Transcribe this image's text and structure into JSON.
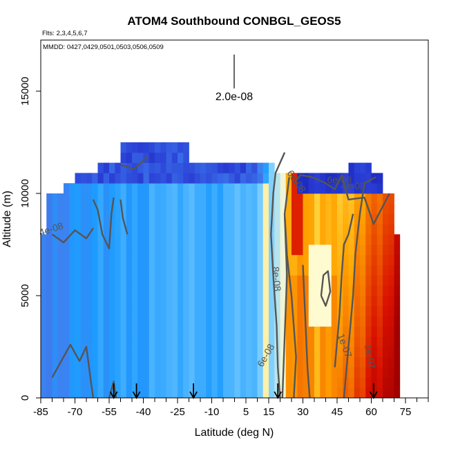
{
  "chart_data": {
    "type": "heatmap",
    "title": "ATOM4 Southbound CONBGL_GEOS5",
    "flights_note": "Flts: 2,3,4,5,6,7",
    "dates_note": "MMDD: 0427,0429,0501,0503,0506,0509",
    "xlabel": "Latitude (deg N)",
    "ylabel": "Altitude (m)",
    "xlim": [
      -85,
      85
    ],
    "ylim": [
      0,
      17500
    ],
    "x_tick_labels": [
      "-85",
      "-70",
      "-55",
      "-40",
      "-25",
      "-10",
      "5",
      "15",
      "30",
      "45",
      "60",
      "75"
    ],
    "x_tick_values": [
      -85,
      -70,
      -55,
      -40,
      -25,
      -10,
      5,
      15,
      30,
      45,
      60,
      75
    ],
    "y_tick_labels": [
      "0",
      "5000",
      "10000",
      "15000"
    ],
    "y_tick_values": [
      0,
      5000,
      10000,
      15000
    ],
    "scale_bar_label": "2.0e-08",
    "arrow_latitudes": [
      -53,
      -43,
      -18,
      19,
      61
    ],
    "contour_labels": [
      "4e-08",
      "6e-08",
      "8e-08",
      "6e-08",
      "1e-07",
      "1e-07",
      "6e-08",
      "4e-08"
    ],
    "color_scale": [
      "#0a0a9e",
      "#2a3fd6",
      "#3f7fef",
      "#1e9bff",
      "#7fd0ff",
      "#fffbd0",
      "#ffd23a",
      "#ffa300",
      "#f06000",
      "#d81000",
      "#a00000"
    ]
  }
}
